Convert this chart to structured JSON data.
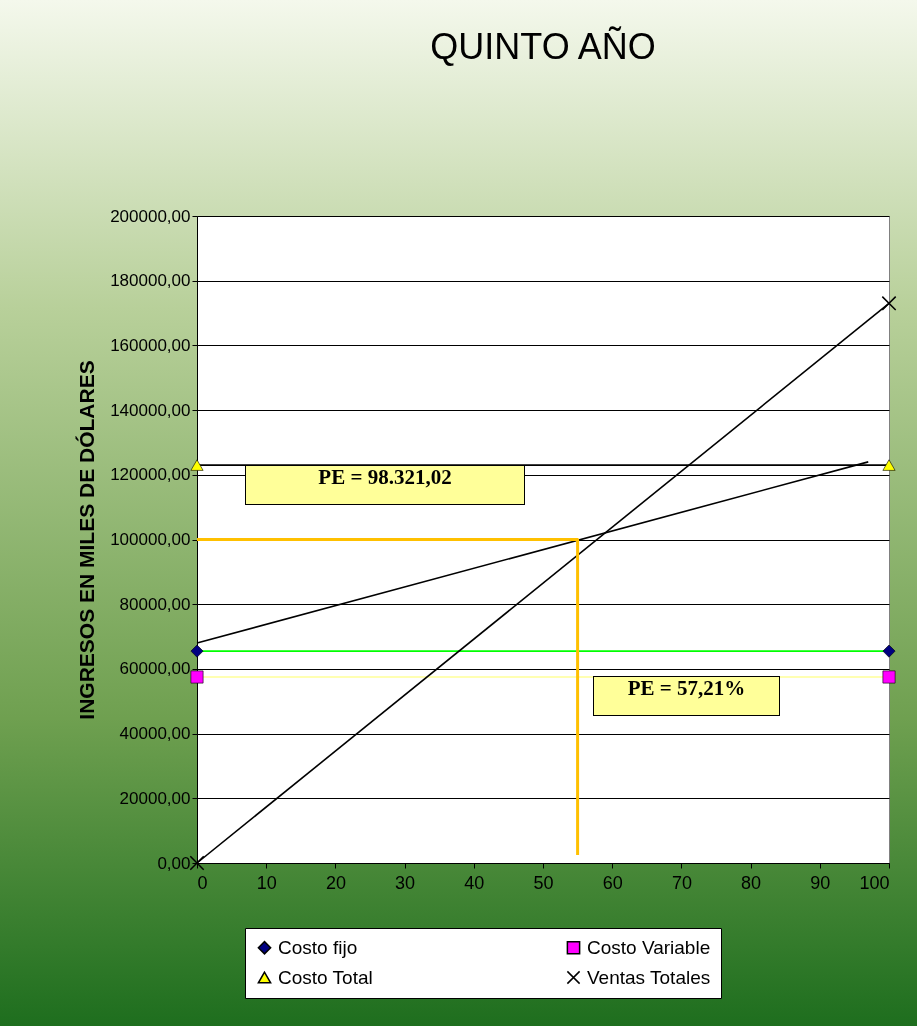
{
  "chart_data": {
    "type": "line",
    "title": "QUINTO AÑO",
    "ylabel": "INGRESOS EN MILES DE DÓLARES",
    "xlim": [
      0,
      100
    ],
    "xticks": [
      0,
      10,
      20,
      30,
      40,
      50,
      60,
      70,
      80,
      90,
      100
    ],
    "ylim": [
      0,
      200000
    ],
    "yticks": [
      {
        "value": 0,
        "label": "0,00"
      },
      {
        "value": 20000,
        "label": "20000,00"
      },
      {
        "value": 40000,
        "label": "40000,00"
      },
      {
        "value": 60000,
        "label": "60000,00"
      },
      {
        "value": 80000,
        "label": "80000,00"
      },
      {
        "value": 100000,
        "label": "100000,00"
      },
      {
        "value": 120000,
        "label": "120000,00"
      },
      {
        "value": 140000,
        "label": "140000,00"
      },
      {
        "value": 160000,
        "label": "160000,00"
      },
      {
        "value": 180000,
        "label": "180000,00"
      },
      {
        "value": 200000,
        "label": "200000,00"
      }
    ],
    "grid": "y",
    "legend": "bottom",
    "series": [
      {
        "name": "Costo fijo",
        "color": "#00ff00",
        "marker": "diamond",
        "colors": [
          "#000080",
          "#000080"
        ],
        "x": [
          0,
          100
        ],
        "values": [
          65500,
          65500
        ]
      },
      {
        "name": "Costo Variable",
        "color": "#ffff99",
        "marker": "square",
        "colors": [
          "#ff00ff",
          "#ff00ff"
        ],
        "x": [
          0,
          100
        ],
        "values": [
          57500,
          57500
        ]
      },
      {
        "name": "Costo Total",
        "color": "#000000",
        "marker": "triangle",
        "colors": [
          "#ffff00",
          "#ffff00"
        ],
        "x": [
          0,
          100
        ],
        "values": [
          123000,
          123000
        ]
      },
      {
        "name": "Ventas Totales",
        "color": "#000000",
        "marker": "cross",
        "colors": [
          "#000000",
          "#000000"
        ],
        "x": [
          0,
          100
        ],
        "values": [
          0,
          173000
        ]
      },
      {
        "color": "#000000",
        "marker": "none",
        "x": [
          0,
          97
        ],
        "values": [
          68000,
          124000
        ]
      },
      {
        "color": "#ffc000",
        "marker": "none",
        "x": [
          0,
          55,
          55
        ],
        "values": [
          100000,
          100000,
          2500
        ]
      }
    ],
    "annotations": [
      "PE = 98.321,02",
      "PE = 57,21%"
    ]
  }
}
